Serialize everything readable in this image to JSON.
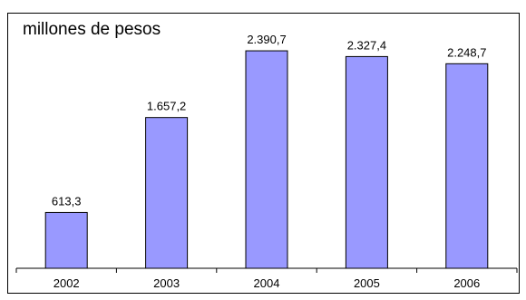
{
  "chart_data": {
    "type": "bar",
    "ylabel": "millones de pesos",
    "categories": [
      "2002",
      "2003",
      "2004",
      "2005",
      "2006"
    ],
    "values": [
      613.3,
      1657.2,
      2390.7,
      2327.4,
      2248.7
    ],
    "value_labels": [
      "613,3",
      "1.657,2",
      "2.390,7",
      "2.327,4",
      "2.248,7"
    ],
    "bar_color": "#9999ff",
    "grid": false,
    "ylim": [
      0,
      2750
    ]
  }
}
